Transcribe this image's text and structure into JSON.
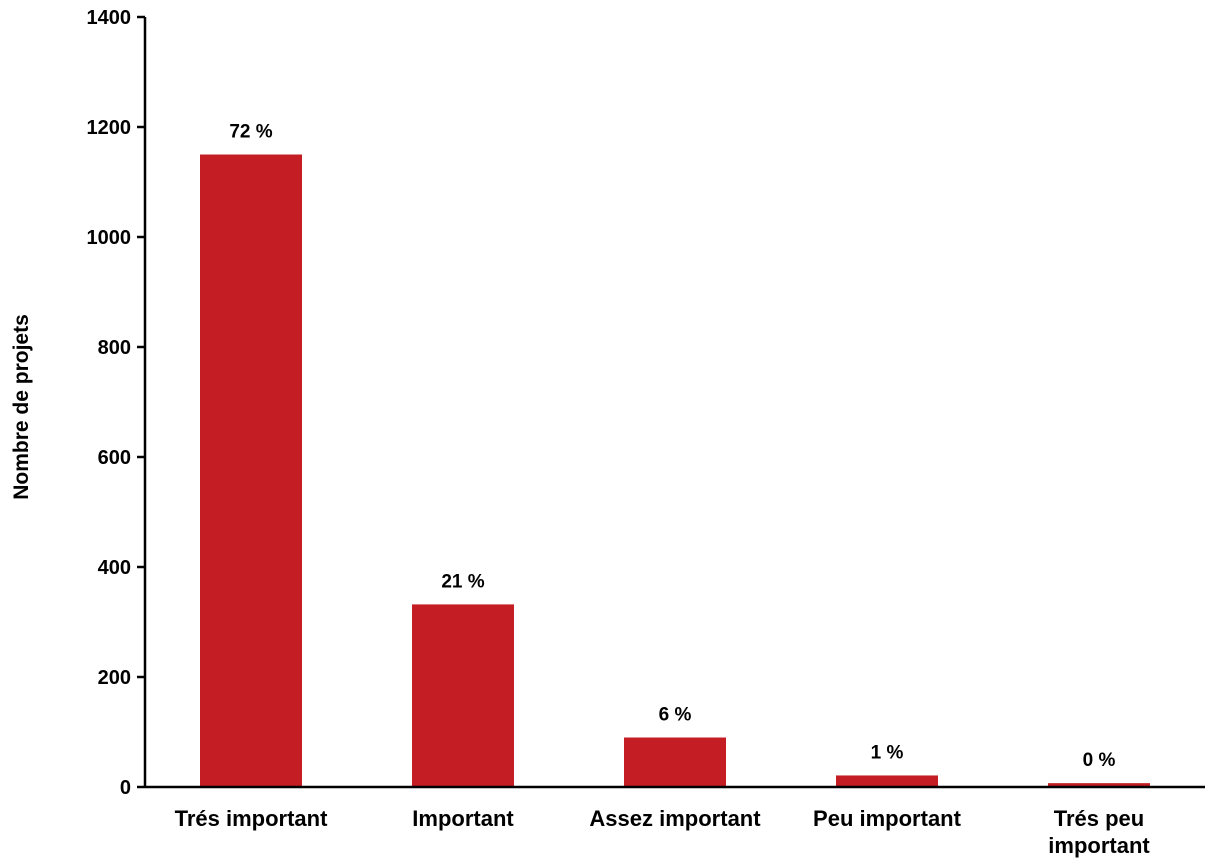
{
  "chart_data": {
    "type": "bar",
    "title": "",
    "xlabel": "",
    "ylabel": "Nombre de projets",
    "ylim": [
      0,
      1400
    ],
    "yticks": [
      0,
      200,
      400,
      600,
      800,
      1000,
      1200,
      1400
    ],
    "grid": false,
    "legend": "none",
    "categories": [
      [
        "Trés important"
      ],
      [
        "Important"
      ],
      [
        "Assez important"
      ],
      [
        "Peu important"
      ],
      [
        "Trés peu",
        "important"
      ]
    ],
    "values": [
      1150,
      332,
      90,
      21,
      7
    ],
    "data_labels": [
      "72 %",
      "21 %",
      "6 %",
      "1 %",
      "0 %"
    ],
    "bar_color": "#C41E24",
    "axis_color": "#000000"
  }
}
